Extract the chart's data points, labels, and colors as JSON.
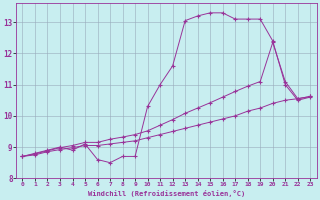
{
  "xlabel": "Windchill (Refroidissement éolien,°C)",
  "bg_color": "#c8eef0",
  "line_color": "#993399",
  "grid_color": "#99aabb",
  "xlim": [
    -0.5,
    23.5
  ],
  "ylim": [
    8.0,
    13.6
  ],
  "xticks": [
    0,
    1,
    2,
    3,
    4,
    5,
    6,
    7,
    8,
    9,
    10,
    11,
    12,
    13,
    14,
    15,
    16,
    17,
    18,
    19,
    20,
    21,
    22,
    23
  ],
  "yticks": [
    8,
    9,
    10,
    11,
    12,
    13
  ],
  "line1_x": [
    0,
    1,
    2,
    3,
    4,
    5,
    6,
    7,
    8,
    9,
    10,
    11,
    12,
    13,
    14,
    15,
    16,
    17,
    18,
    19,
    20,
    21,
    22,
    23
  ],
  "line1_y": [
    8.7,
    8.8,
    8.9,
    9.0,
    8.9,
    9.1,
    8.6,
    8.5,
    8.7,
    8.7,
    10.3,
    11.0,
    11.6,
    13.05,
    13.2,
    13.3,
    13.3,
    13.1,
    13.1,
    13.1,
    12.4,
    11.0,
    10.5,
    10.6
  ],
  "line2_x": [
    0,
    1,
    2,
    3,
    4,
    5,
    6,
    7,
    8,
    9,
    10,
    11,
    12,
    13,
    14,
    15,
    16,
    17,
    18,
    19,
    20,
    21,
    22,
    23
  ],
  "line2_y": [
    8.7,
    8.75,
    8.85,
    8.92,
    8.98,
    9.05,
    9.05,
    9.1,
    9.15,
    9.2,
    9.3,
    9.4,
    9.5,
    9.6,
    9.7,
    9.8,
    9.9,
    10.0,
    10.15,
    10.25,
    10.4,
    10.5,
    10.55,
    10.62
  ],
  "line3_x": [
    0,
    1,
    2,
    3,
    4,
    5,
    6,
    7,
    8,
    9,
    10,
    11,
    12,
    13,
    14,
    15,
    16,
    17,
    18,
    19,
    20,
    21,
    22,
    23
  ],
  "line3_y": [
    8.7,
    8.78,
    8.88,
    8.98,
    9.05,
    9.15,
    9.15,
    9.25,
    9.32,
    9.4,
    9.52,
    9.7,
    9.88,
    10.08,
    10.25,
    10.42,
    10.6,
    10.78,
    10.95,
    11.1,
    12.35,
    11.1,
    10.55,
    10.62
  ]
}
